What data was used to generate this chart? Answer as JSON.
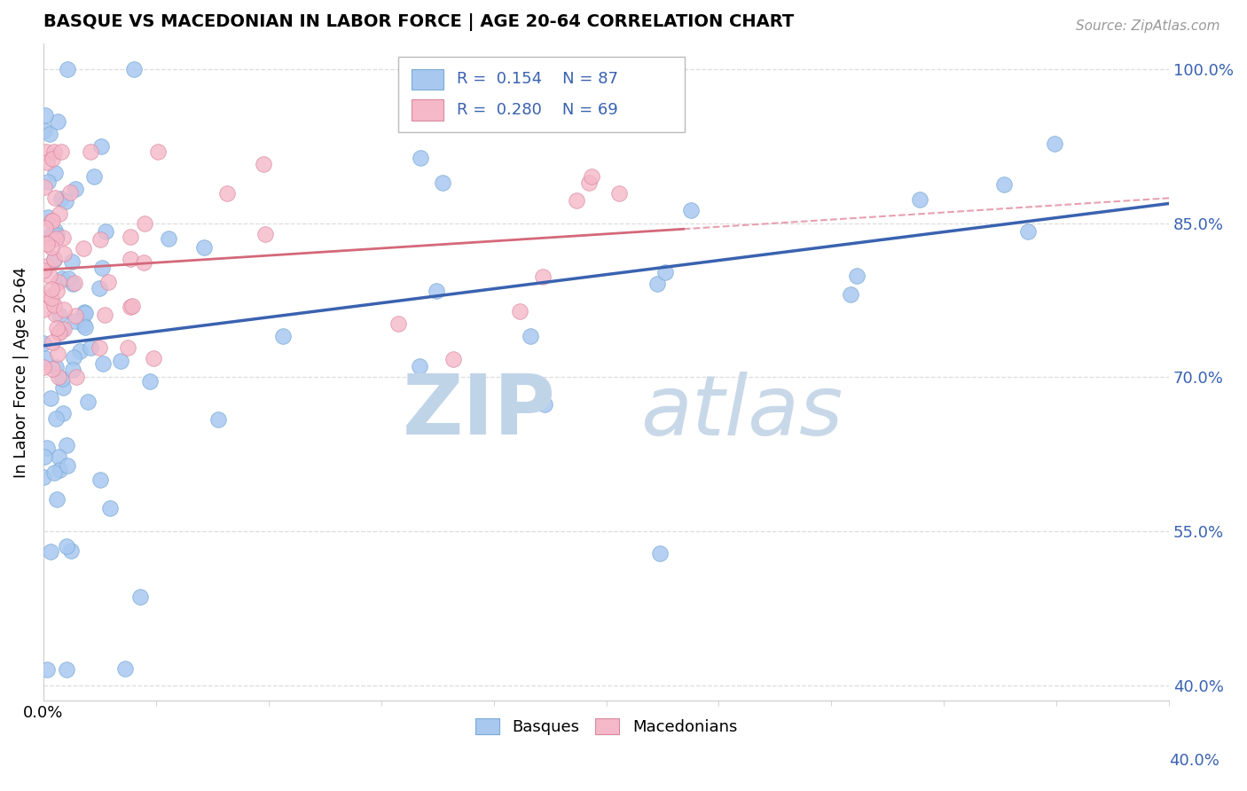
{
  "title": "BASQUE VS MACEDONIAN IN LABOR FORCE | AGE 20-64 CORRELATION CHART",
  "source_text": "Source: ZipAtlas.com",
  "ylabel": "In Labor Force | Age 20-64",
  "xlim": [
    0.0,
    0.255
  ],
  "ylim": [
    0.385,
    1.025
  ],
  "yticks": [
    0.4,
    0.55,
    0.7,
    0.85,
    1.0
  ],
  "ytick_labels": [
    "40.0%",
    "55.0%",
    "70.0%",
    "85.0%",
    "100.0%"
  ],
  "legend_r_basque": "0.154",
  "legend_n_basque": "87",
  "legend_r_mac": "0.280",
  "legend_n_mac": "69",
  "basque_color": "#a8c8f0",
  "basque_edge": "#7aaad4",
  "mac_color": "#f5b8c8",
  "mac_edge": "#d888a0",
  "reg_basque_color": "#3a62b0",
  "reg_mac_color": "#d4687a",
  "dash_mac_color": "#e8a0b0",
  "watermark_zip_color": "#c0d4e8",
  "watermark_atlas_color": "#c8d8e8",
  "grid_color": "#dddddd",
  "spine_color": "#cccccc"
}
